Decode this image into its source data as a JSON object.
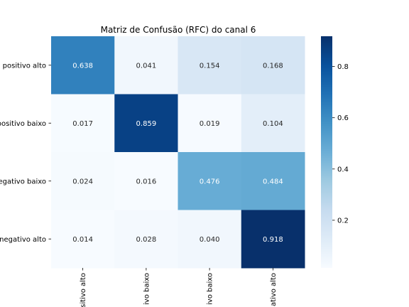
{
  "chart_data": {
    "type": "heatmap",
    "title": "Matriz de Confusão (RFC) do canal 6",
    "rows": [
      "o positivo alto",
      "positivo baixo",
      "egativo baixo",
      "negativo alto"
    ],
    "columns": [
      "sitivo alto",
      "ivo baixo",
      "ivo baixo",
      "ativo alto"
    ],
    "values": [
      [
        0.638,
        0.041,
        0.154,
        0.168
      ],
      [
        0.017,
        0.859,
        0.019,
        0.104
      ],
      [
        0.024,
        0.016,
        0.476,
        0.484
      ],
      [
        0.014,
        0.028,
        0.04,
        0.918
      ]
    ],
    "value_labels": [
      [
        "0.638",
        "0.041",
        "0.154",
        "0.168"
      ],
      [
        "0.017",
        "0.859",
        "0.019",
        "0.104"
      ],
      [
        "0.024",
        "0.016",
        "0.476",
        "0.484"
      ],
      [
        "0.014",
        "0.028",
        "0.040",
        "0.918"
      ]
    ],
    "colormap": "Blues",
    "colorbar": {
      "range": [
        0.014,
        0.918
      ],
      "ticks": [
        0.2,
        0.4,
        0.6,
        0.8
      ],
      "tick_labels": [
        "0.2",
        "0.4",
        "0.6",
        "0.8"
      ]
    }
  }
}
